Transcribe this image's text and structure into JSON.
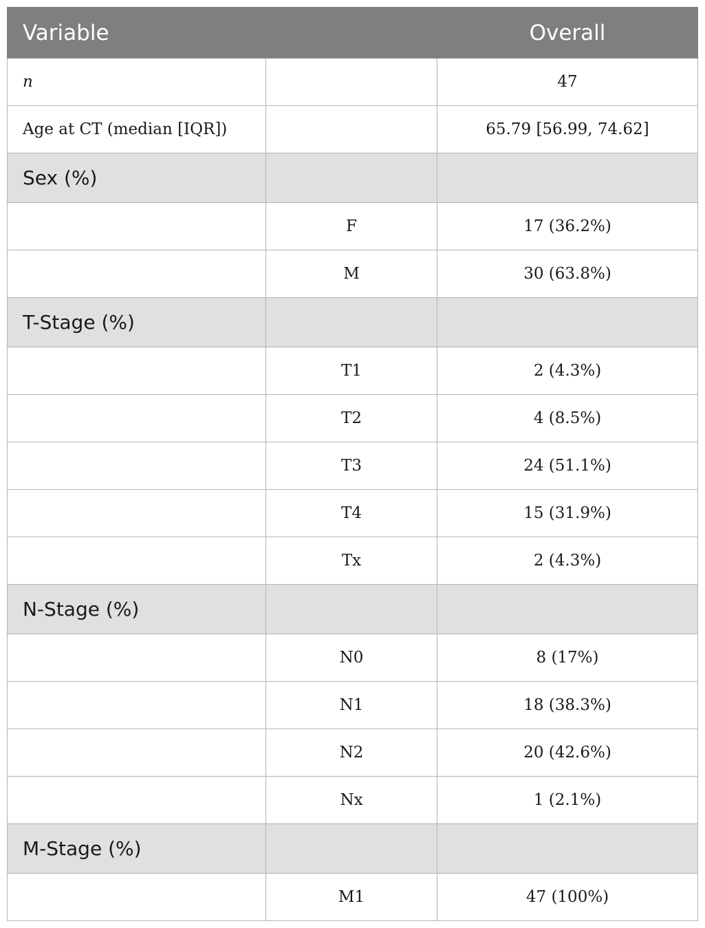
{
  "header": {
    "variable": "Variable",
    "overall": "Overall"
  },
  "rows": {
    "n": {
      "label": "n",
      "value": "47"
    },
    "age": {
      "label": "Age at CT (median [IQR])",
      "value": "65.79 [56.99, 74.62]"
    }
  },
  "sections": {
    "sex": {
      "title": "Sex (%)",
      "items": [
        {
          "level": "F",
          "value": "17 (36.2%)"
        },
        {
          "level": "M",
          "value": "30 (63.8%)"
        }
      ]
    },
    "t_stage": {
      "title": "T-Stage (%)",
      "items": [
        {
          "level": "T1",
          "value": "2 (4.3%)"
        },
        {
          "level": "T2",
          "value": "4 (8.5%)"
        },
        {
          "level": "T3",
          "value": "24 (51.1%)"
        },
        {
          "level": "T4",
          "value": "15 (31.9%)"
        },
        {
          "level": "Tx",
          "value": "2 (4.3%)"
        }
      ]
    },
    "n_stage": {
      "title": "N-Stage (%)",
      "items": [
        {
          "level": "N0",
          "value": "8 (17%)"
        },
        {
          "level": "N1",
          "value": "18 (38.3%)"
        },
        {
          "level": "N2",
          "value": "20 (42.6%)"
        },
        {
          "level": "Nx",
          "value": "1 (2.1%)"
        }
      ]
    },
    "m_stage": {
      "title": "M-Stage (%)",
      "items": [
        {
          "level": "M1",
          "value": "47 (100%)"
        }
      ]
    }
  }
}
